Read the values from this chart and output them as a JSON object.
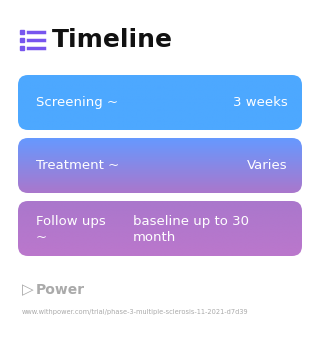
{
  "title": "Timeline",
  "title_icon_color": "#7755ee",
  "title_fontsize": 18,
  "background_color": "#ffffff",
  "rows": [
    {
      "label": "Screening ~",
      "value": "3 weeks",
      "color_top": "#4da8ff",
      "color_bottom": "#4da8ff",
      "text_color": "#ffffff",
      "two_line": false
    },
    {
      "label": "Treatment ~",
      "value": "Varies",
      "color_top": "#6699ff",
      "color_bottom": "#aa77cc",
      "text_color": "#ffffff",
      "two_line": false
    },
    {
      "label_line1": "Follow ups",
      "label_line2": "~",
      "value_line1": "baseline up to 30",
      "value_line2": "month",
      "color_top": "#aa77cc",
      "color_bottom": "#bb77cc",
      "text_color": "#ffffff",
      "two_line": true
    }
  ],
  "footer_text": "Power",
  "footer_url": "www.withpower.com/trial/phase-3-multiple-sclerosis-11-2021-d7d39",
  "footer_color": "#aaaaaa"
}
